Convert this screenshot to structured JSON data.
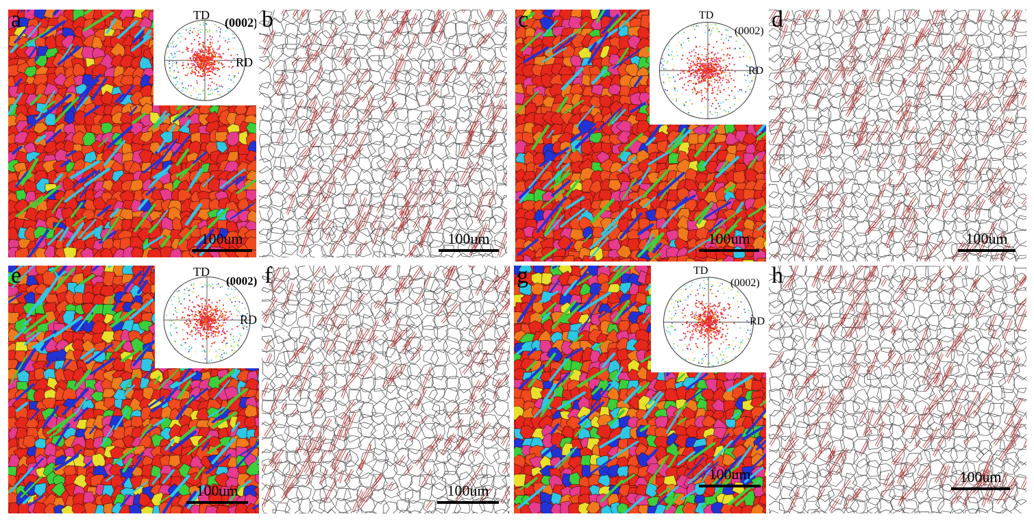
{
  "figure": {
    "panels": [
      {
        "label": "a",
        "type": "ipf-map",
        "scale_bar": "100um",
        "pole_figure": {
          "plane": "(0002)",
          "top_axis": "TD",
          "right_axis": "RD"
        }
      },
      {
        "label": "b",
        "type": "boundary-map",
        "scale_bar": "100um"
      },
      {
        "label": "c",
        "type": "ipf-map",
        "scale_bar": "100um",
        "pole_figure": {
          "plane": "(0002)",
          "top_axis": "TD",
          "right_axis": "RD"
        }
      },
      {
        "label": "d",
        "type": "boundary-map",
        "scale_bar": "100um"
      },
      {
        "label": "e",
        "type": "ipf-map",
        "scale_bar": "100um",
        "pole_figure": {
          "plane": "(0002)",
          "top_axis": "TD",
          "right_axis": "RD"
        }
      },
      {
        "label": "f",
        "type": "boundary-map",
        "scale_bar": "100um"
      },
      {
        "label": "g",
        "type": "ipf-map",
        "scale_bar": "100um",
        "pole_figure": {
          "plane": "(0002)",
          "top_axis": "TD",
          "right_axis": "RD"
        }
      },
      {
        "label": "h",
        "type": "boundary-map",
        "scale_bar": "100um"
      }
    ],
    "colors": {
      "grain_primary": "#e8271c",
      "grain_secondary": "#f04a1e",
      "twin_blue": "#2233d6",
      "twin_cyan": "#2ec7e6",
      "green": "#3ccf3a",
      "magenta": "#e63b8f",
      "orange": "#f07a1c",
      "yellow": "#e8e02a",
      "boundary_gray": "#555555",
      "twin_boundary": "#b03a3a"
    }
  }
}
